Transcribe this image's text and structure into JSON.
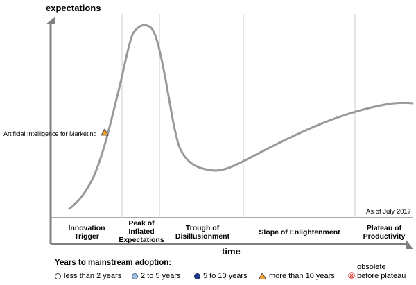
{
  "chart_data": {
    "type": "line",
    "y_axis_title": "expectations",
    "x_axis_title": "time",
    "as_of": "As of July 2017",
    "phases": [
      {
        "id": "innovation-trigger",
        "lines": [
          "Innovation",
          "Trigger"
        ]
      },
      {
        "id": "peak",
        "lines": [
          "Peak of",
          "Inflated",
          "Expectations"
        ]
      },
      {
        "id": "trough",
        "lines": [
          "Trough of",
          "Disillusionment"
        ]
      },
      {
        "id": "slope",
        "lines": [
          "Slope of Enlightenment"
        ]
      },
      {
        "id": "plateau",
        "lines": [
          "Plateau of",
          "Productivity"
        ]
      }
    ],
    "technologies": [
      {
        "name": "Artificial Intelligence for Marketing",
        "years_to_adoption": "more than 10 years",
        "phase": "Innovation Trigger"
      }
    ],
    "legend": {
      "title": "Years to mainstream adoption:",
      "items": [
        {
          "label": "less than 2 years",
          "symbol": "white-circle",
          "color": "#ffffff"
        },
        {
          "label": "2 to 5 years",
          "symbol": "light-blue-circle",
          "color": "#9fc3e6"
        },
        {
          "label": "5 to 10 years",
          "symbol": "dark-blue-circle",
          "color": "#1c3a8c"
        },
        {
          "label": "more than 10 years",
          "symbol": "orange-triangle",
          "color": "#f0a030"
        },
        {
          "label_lines": [
            "obsolete",
            "before plateau"
          ],
          "symbol": "red-x-circle",
          "color": "#e03030"
        }
      ]
    },
    "colors": {
      "curve": "#999999",
      "axis": "#808080",
      "divider": "#cccccc"
    }
  }
}
